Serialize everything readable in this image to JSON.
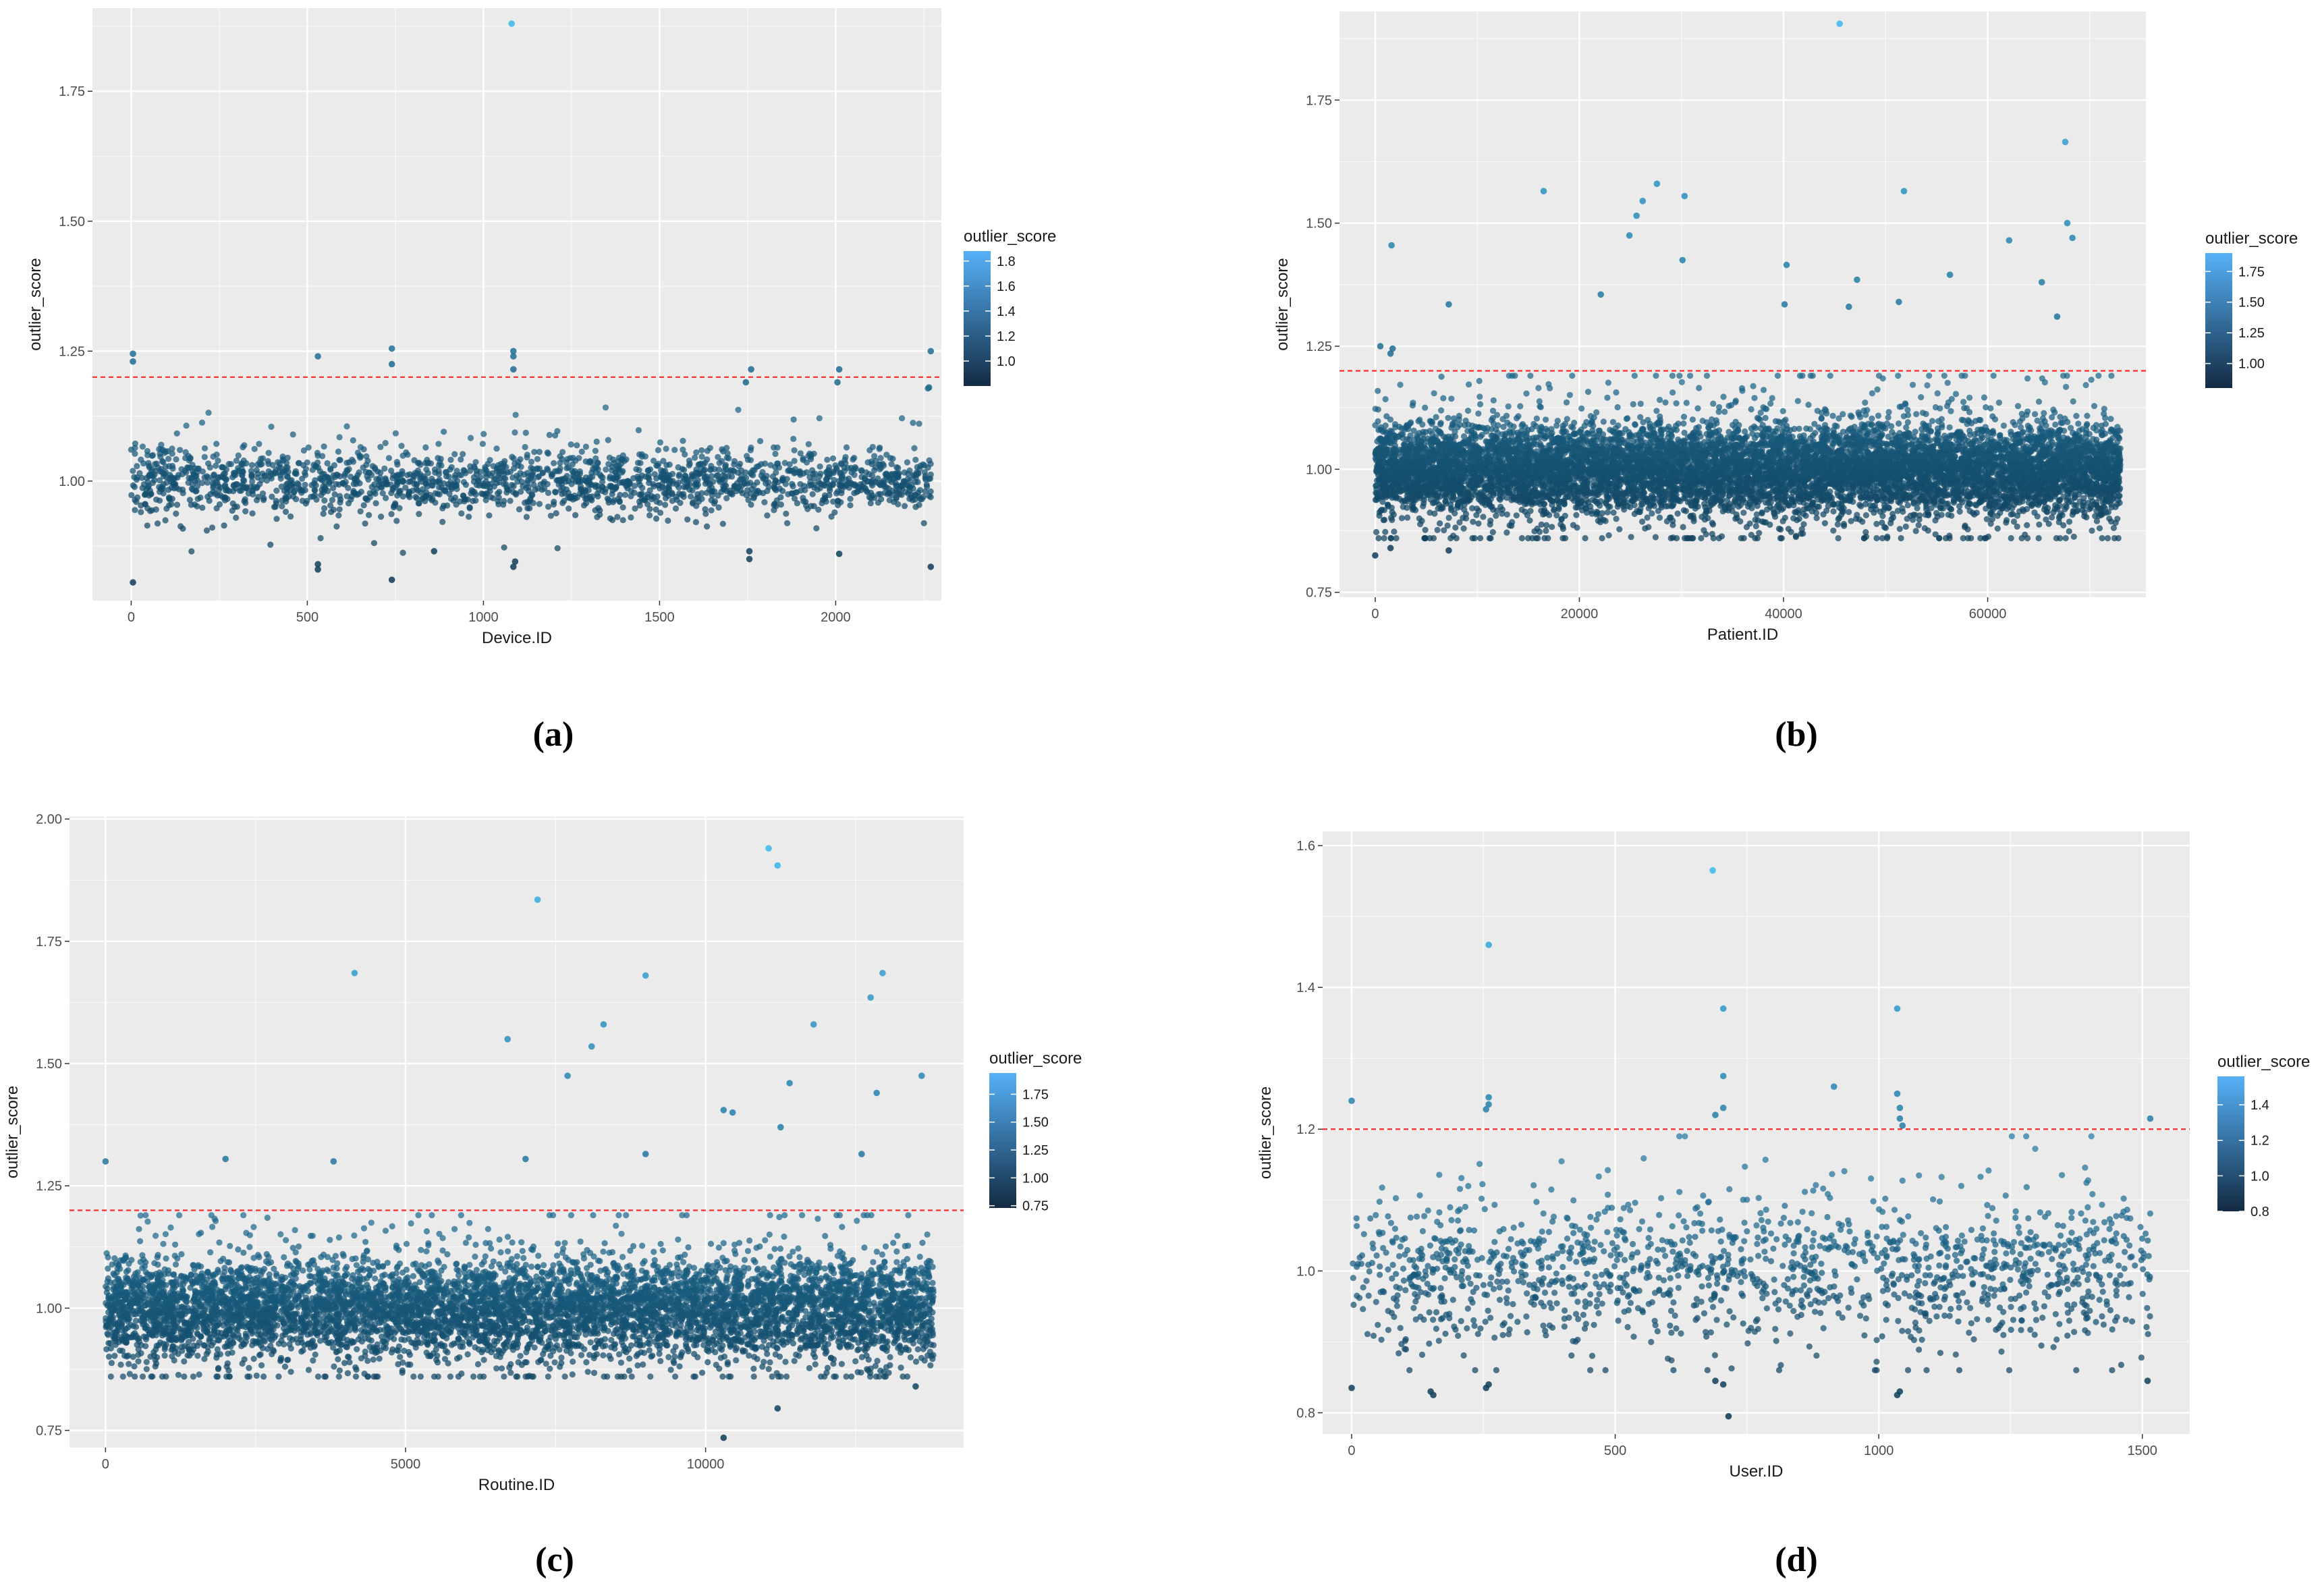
{
  "colors": {
    "panel_bg": "#ebebeb",
    "grid_major": "#ffffff",
    "threshold_line": "#ff2b2b",
    "gradient_low": "#132b43",
    "gradient_high": "#56b1f7",
    "point_low": "#0d3a55",
    "point_high": "#39b8ee"
  },
  "chart_data": [
    {
      "id": "a",
      "type": "scatter",
      "panel_label": "(a)",
      "xlabel": "Device.ID",
      "ylabel": "outlier_score",
      "xlim": [
        -110,
        2300
      ],
      "ylim": [
        0.77,
        1.91
      ],
      "xticks": [
        0,
        500,
        1000,
        1500,
        2000
      ],
      "xtick_labels": [
        "0",
        "500",
        "1000",
        "1500",
        "2000"
      ],
      "yticks": [
        1.0,
        1.25,
        1.5,
        1.75
      ],
      "ytick_labels": [
        "1.00",
        "1.25",
        "1.50",
        "1.75"
      ],
      "threshold": 1.2,
      "legend": {
        "title": "outlier_score",
        "range": [
          0.8,
          1.88
        ],
        "ticks": [
          1.0,
          1.2,
          1.4,
          1.6,
          1.8
        ],
        "tick_labels": [
          "1.0",
          "1.2",
          "1.4",
          "1.6",
          "1.8"
        ]
      },
      "bulk": {
        "x_range": [
          0,
          2270
        ],
        "count": 1900,
        "seed": 11,
        "sigma": 0.03
      },
      "outliers": [
        {
          "x": 1080,
          "y": 1.88
        },
        {
          "x": 5,
          "y": 1.245
        },
        {
          "x": 5,
          "y": 1.23
        },
        {
          "x": 530,
          "y": 1.24
        },
        {
          "x": 740,
          "y": 1.255
        },
        {
          "x": 740,
          "y": 1.225
        },
        {
          "x": 1085,
          "y": 1.25
        },
        {
          "x": 1085,
          "y": 1.24
        },
        {
          "x": 1085,
          "y": 1.215
        },
        {
          "x": 1760,
          "y": 1.215
        },
        {
          "x": 1745,
          "y": 1.19
        },
        {
          "x": 2010,
          "y": 1.215
        },
        {
          "x": 2005,
          "y": 1.19
        },
        {
          "x": 2270,
          "y": 1.25
        },
        {
          "x": 2265,
          "y": 1.18
        },
        {
          "x": 5,
          "y": 0.805
        },
        {
          "x": 530,
          "y": 0.83
        },
        {
          "x": 530,
          "y": 0.84
        },
        {
          "x": 740,
          "y": 0.81
        },
        {
          "x": 1085,
          "y": 0.835
        },
        {
          "x": 1090,
          "y": 0.845
        },
        {
          "x": 1755,
          "y": 0.85
        },
        {
          "x": 1755,
          "y": 0.865
        },
        {
          "x": 2010,
          "y": 0.86
        },
        {
          "x": 2270,
          "y": 0.835
        },
        {
          "x": 860,
          "y": 0.865
        }
      ]
    },
    {
      "id": "b",
      "type": "scatter",
      "panel_label": "(b)",
      "xlabel": "Patient.ID",
      "ylabel": "outlier_score",
      "xlim": [
        -3500,
        75500
      ],
      "ylim": [
        0.74,
        1.93
      ],
      "xticks": [
        0,
        20000,
        40000,
        60000
      ],
      "xtick_labels": [
        "0",
        "20000",
        "40000",
        "60000"
      ],
      "yticks": [
        0.75,
        1.0,
        1.25,
        1.5,
        1.75
      ],
      "ytick_labels": [
        "0.75",
        "1.00",
        "1.25",
        "1.50",
        "1.75"
      ],
      "threshold": 1.2,
      "legend": {
        "title": "outlier_score",
        "range": [
          0.8,
          1.9
        ],
        "ticks": [
          1.0,
          1.25,
          1.5,
          1.75
        ],
        "tick_labels": [
          "1.00",
          "1.25",
          "1.50",
          "1.75"
        ]
      },
      "bulk": {
        "x_range": [
          0,
          73000
        ],
        "count": 9000,
        "seed": 22,
        "sigma": 0.045
      },
      "outliers": [
        {
          "x": 45500,
          "y": 1.905
        },
        {
          "x": 67600,
          "y": 1.665
        },
        {
          "x": 16500,
          "y": 1.565
        },
        {
          "x": 27600,
          "y": 1.58
        },
        {
          "x": 30300,
          "y": 1.555
        },
        {
          "x": 51800,
          "y": 1.565
        },
        {
          "x": 26200,
          "y": 1.545
        },
        {
          "x": 25600,
          "y": 1.515
        },
        {
          "x": 67800,
          "y": 1.5
        },
        {
          "x": 1600,
          "y": 1.455
        },
        {
          "x": 24900,
          "y": 1.475
        },
        {
          "x": 62100,
          "y": 1.465
        },
        {
          "x": 68300,
          "y": 1.47
        },
        {
          "x": 30100,
          "y": 1.425
        },
        {
          "x": 40300,
          "y": 1.415
        },
        {
          "x": 47200,
          "y": 1.385
        },
        {
          "x": 56300,
          "y": 1.395
        },
        {
          "x": 65300,
          "y": 1.38
        },
        {
          "x": 22100,
          "y": 1.355
        },
        {
          "x": 7200,
          "y": 1.335
        },
        {
          "x": 46400,
          "y": 1.33
        },
        {
          "x": 51300,
          "y": 1.34
        },
        {
          "x": 66800,
          "y": 1.31
        },
        {
          "x": 40100,
          "y": 1.335
        },
        {
          "x": 500,
          "y": 1.25
        },
        {
          "x": 1500,
          "y": 1.235
        },
        {
          "x": 1700,
          "y": 1.245
        },
        {
          "x": 0,
          "y": 0.825
        },
        {
          "x": 1500,
          "y": 0.84
        },
        {
          "x": 7200,
          "y": 0.835
        }
      ]
    },
    {
      "id": "c",
      "type": "scatter",
      "panel_label": "(c)",
      "xlabel": "Routine.ID",
      "ylabel": "outlier_score",
      "xlim": [
        -600,
        14300
      ],
      "ylim": [
        0.715,
        2.005
      ],
      "xticks": [
        0,
        5000,
        10000
      ],
      "xtick_labels": [
        "0",
        "5000",
        "10000"
      ],
      "yticks": [
        0.75,
        1.0,
        1.25,
        1.5,
        1.75,
        2.0
      ],
      "ytick_labels": [
        "0.75",
        "1.00",
        "1.25",
        "1.50",
        "1.75",
        "2.00"
      ],
      "threshold": 1.2,
      "legend": {
        "title": "outlier_score",
        "range": [
          0.73,
          1.94
        ],
        "ticks": [
          0.75,
          1.0,
          1.25,
          1.5,
          1.75
        ],
        "tick_labels": [
          "0.75",
          "1.00",
          "1.25",
          "1.50",
          "1.75"
        ]
      },
      "bulk": {
        "x_range": [
          0,
          13800
        ],
        "count": 6500,
        "seed": 33,
        "sigma": 0.05
      },
      "outliers": [
        {
          "x": 11050,
          "y": 1.94
        },
        {
          "x": 11200,
          "y": 1.905
        },
        {
          "x": 7200,
          "y": 1.835
        },
        {
          "x": 4150,
          "y": 1.685
        },
        {
          "x": 9000,
          "y": 1.68
        },
        {
          "x": 12950,
          "y": 1.685
        },
        {
          "x": 12750,
          "y": 1.635
        },
        {
          "x": 8300,
          "y": 1.58
        },
        {
          "x": 11800,
          "y": 1.58
        },
        {
          "x": 6700,
          "y": 1.55
        },
        {
          "x": 8100,
          "y": 1.535
        },
        {
          "x": 7700,
          "y": 1.475
        },
        {
          "x": 13600,
          "y": 1.475
        },
        {
          "x": 11400,
          "y": 1.46
        },
        {
          "x": 12850,
          "y": 1.44
        },
        {
          "x": 10300,
          "y": 1.405
        },
        {
          "x": 10450,
          "y": 1.4
        },
        {
          "x": 11250,
          "y": 1.37
        },
        {
          "x": 0,
          "y": 1.3
        },
        {
          "x": 2000,
          "y": 1.305
        },
        {
          "x": 3800,
          "y": 1.3
        },
        {
          "x": 7000,
          "y": 1.305
        },
        {
          "x": 9000,
          "y": 1.315
        },
        {
          "x": 12600,
          "y": 1.315
        },
        {
          "x": 10300,
          "y": 0.735
        },
        {
          "x": 11200,
          "y": 0.795
        },
        {
          "x": 13500,
          "y": 0.84
        }
      ]
    },
    {
      "id": "d",
      "type": "scatter",
      "panel_label": "(d)",
      "xlabel": "User.ID",
      "ylabel": "outlier_score",
      "xlim": [
        -55,
        1590
      ],
      "ylim": [
        0.77,
        1.62
      ],
      "xticks": [
        0,
        500,
        1000,
        1500
      ],
      "xtick_labels": [
        "0",
        "500",
        "1000",
        "1500"
      ],
      "yticks": [
        0.8,
        1.0,
        1.2,
        1.4,
        1.6
      ],
      "ytick_labels": [
        "0.8",
        "1.0",
        "1.2",
        "1.4",
        "1.6"
      ],
      "threshold": 1.2,
      "legend": {
        "title": "outlier_score",
        "range": [
          0.8,
          1.56
        ],
        "ticks": [
          0.8,
          1.0,
          1.2,
          1.4
        ],
        "tick_labels": [
          "0.8",
          "1.0",
          "1.2",
          "1.4"
        ]
      },
      "bulk": {
        "x_range": [
          0,
          1515
        ],
        "count": 1450,
        "seed": 44,
        "sigma": 0.05
      },
      "outliers": [
        {
          "x": 685,
          "y": 1.565
        },
        {
          "x": 260,
          "y": 1.46
        },
        {
          "x": 705,
          "y": 1.37
        },
        {
          "x": 1035,
          "y": 1.37
        },
        {
          "x": 705,
          "y": 1.275
        },
        {
          "x": 915,
          "y": 1.26
        },
        {
          "x": 1035,
          "y": 1.25
        },
        {
          "x": 260,
          "y": 1.245
        },
        {
          "x": 260,
          "y": 1.235
        },
        {
          "x": 255,
          "y": 1.228
        },
        {
          "x": 0,
          "y": 1.24
        },
        {
          "x": 705,
          "y": 1.23
        },
        {
          "x": 690,
          "y": 1.22
        },
        {
          "x": 1040,
          "y": 1.23
        },
        {
          "x": 1040,
          "y": 1.215
        },
        {
          "x": 1045,
          "y": 1.205
        },
        {
          "x": 1515,
          "y": 1.215
        },
        {
          "x": 0,
          "y": 0.835
        },
        {
          "x": 150,
          "y": 0.83
        },
        {
          "x": 155,
          "y": 0.825
        },
        {
          "x": 260,
          "y": 0.84
        },
        {
          "x": 255,
          "y": 0.835
        },
        {
          "x": 690,
          "y": 0.845
        },
        {
          "x": 705,
          "y": 0.84
        },
        {
          "x": 715,
          "y": 0.795
        },
        {
          "x": 1035,
          "y": 0.825
        },
        {
          "x": 1040,
          "y": 0.83
        },
        {
          "x": 1510,
          "y": 0.845
        }
      ]
    }
  ]
}
